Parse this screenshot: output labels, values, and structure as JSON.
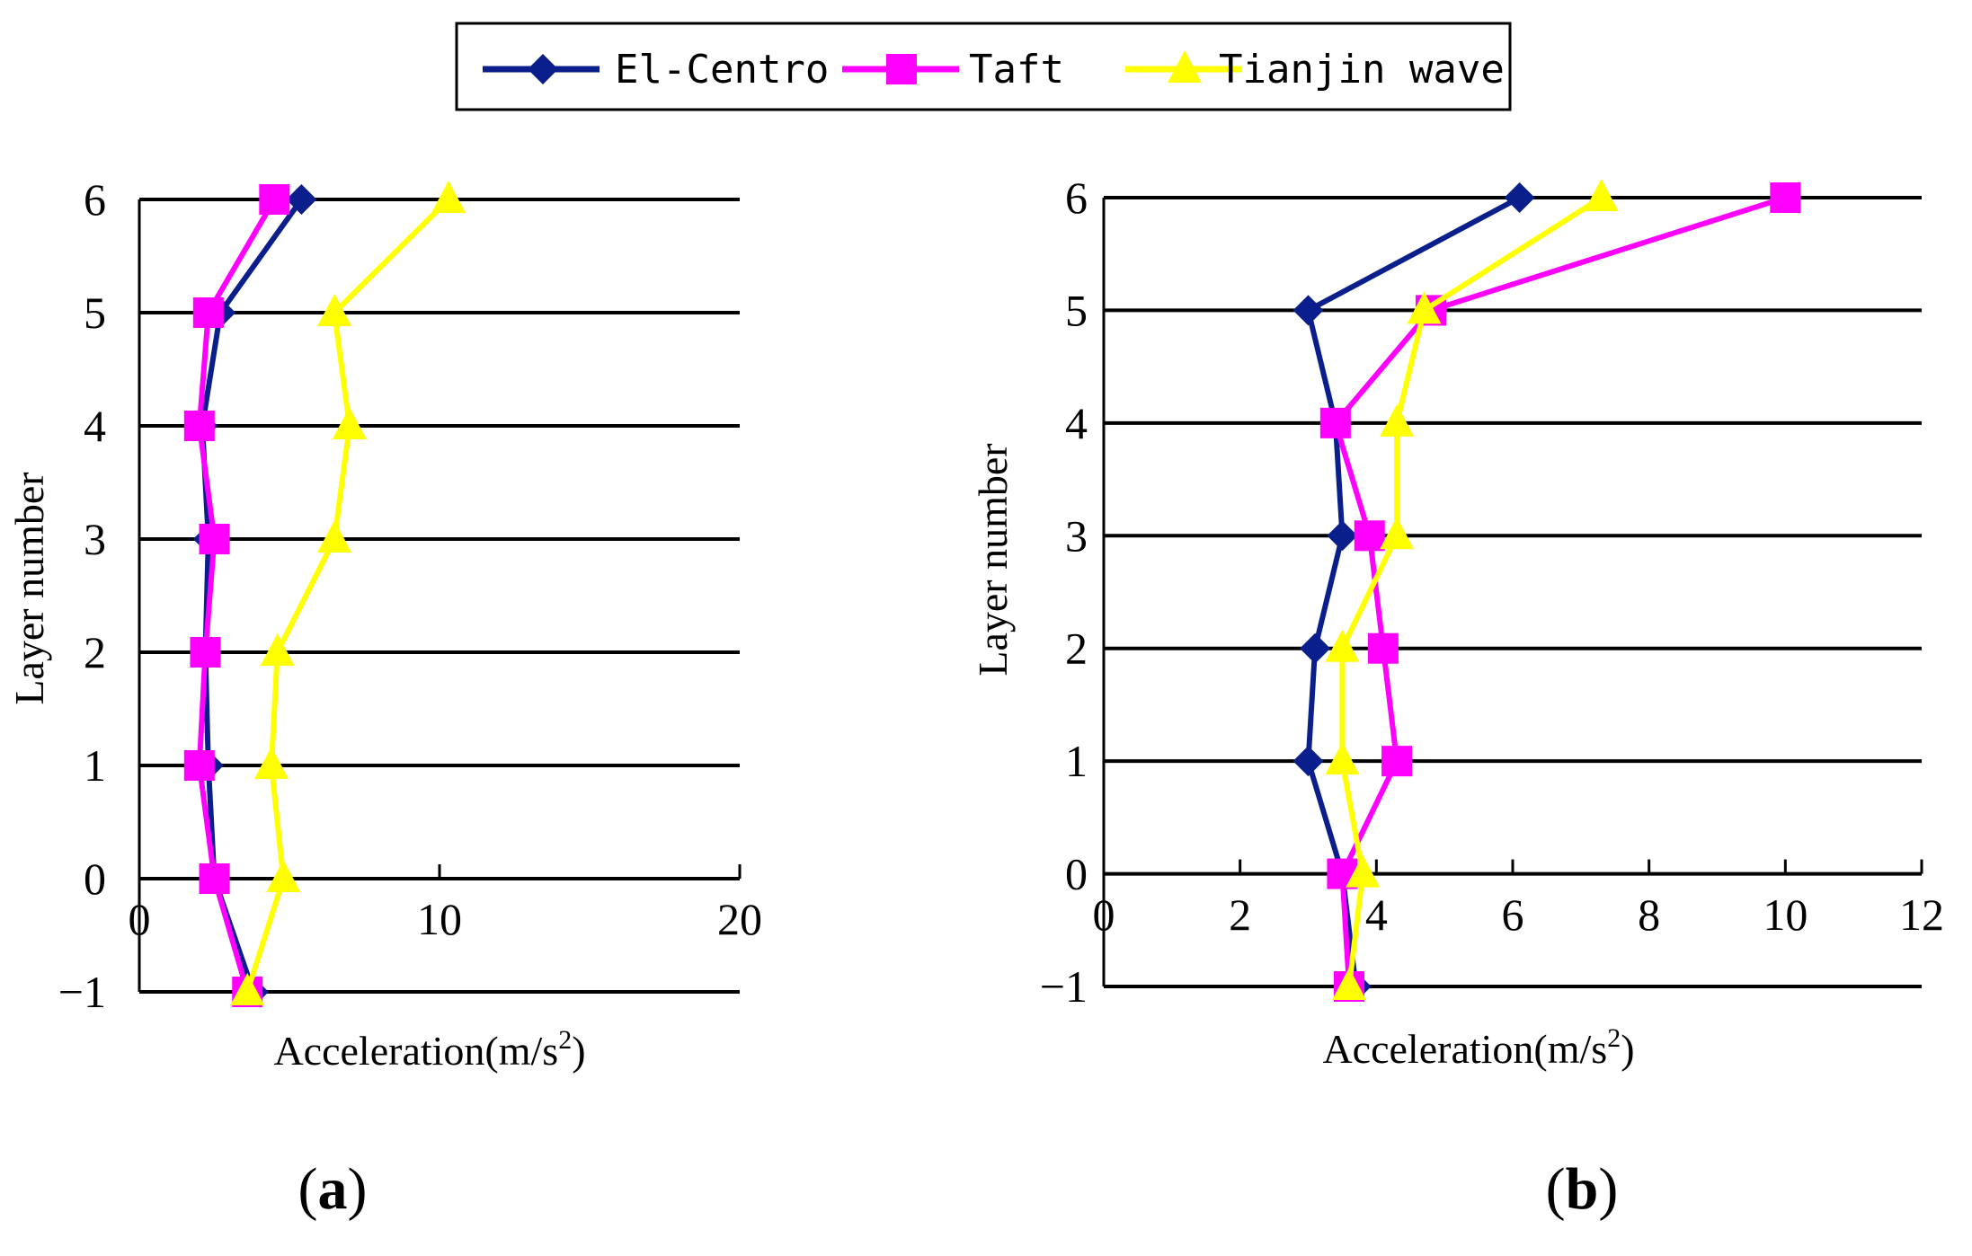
{
  "legend": {
    "entries": [
      {
        "name": "El-Centro",
        "color": "#0b1f8c",
        "marker": "diamond"
      },
      {
        "name": "Taft",
        "color": "#ff00ff",
        "marker": "square"
      },
      {
        "name": "Tianjin wave",
        "color": "#ffff00",
        "marker": "triangle"
      }
    ]
  },
  "chart_data": [
    {
      "type": "line",
      "panel_label": "a",
      "xlabel": "Acceleration(m/s",
      "xlabel_sup": "2",
      "xlabel_end": ")",
      "ylabel": "Layer number",
      "xlim": [
        0,
        20
      ],
      "ylim": [
        -1,
        6
      ],
      "x_ticks": [
        "0",
        "10",
        "20"
      ],
      "y_ticks": [
        "−1",
        "0",
        "1",
        "2",
        "3",
        "4",
        "5",
        "6"
      ],
      "grid": "horizontal",
      "y": [
        -1,
        0,
        1,
        2,
        3,
        4,
        5,
        6
      ],
      "series": [
        {
          "name": "El-Centro",
          "values": [
            3.8,
            2.5,
            2.3,
            2.2,
            2.3,
            2.1,
            2.7,
            5.4
          ]
        },
        {
          "name": "Taft",
          "values": [
            3.6,
            2.5,
            2.0,
            2.2,
            2.5,
            2.0,
            2.3,
            4.5
          ]
        },
        {
          "name": "Tianjin wave",
          "values": [
            3.6,
            4.8,
            4.4,
            4.6,
            6.5,
            7.0,
            6.5,
            10.3
          ]
        }
      ]
    },
    {
      "type": "line",
      "panel_label": "b",
      "xlabel": "Acceleration(m/s",
      "xlabel_sup": "2",
      "xlabel_end": ")",
      "ylabel": "Layer number",
      "xlim": [
        0,
        12
      ],
      "ylim": [
        -1,
        6
      ],
      "x_ticks": [
        "0",
        "2",
        "4",
        "6",
        "8",
        "10",
        "12"
      ],
      "y_ticks": [
        "−1",
        "0",
        "1",
        "2",
        "3",
        "4",
        "5",
        "6"
      ],
      "grid": "horizontal",
      "y": [
        -1,
        0,
        1,
        2,
        3,
        4,
        5,
        6
      ],
      "series": [
        {
          "name": "El-Centro",
          "values": [
            3.7,
            3.5,
            3.0,
            3.1,
            3.5,
            3.4,
            3.0,
            6.1
          ]
        },
        {
          "name": "Taft",
          "values": [
            3.6,
            3.5,
            4.3,
            4.1,
            3.9,
            3.4,
            4.8,
            10.0
          ]
        },
        {
          "name": "Tianjin wave",
          "values": [
            3.6,
            3.8,
            3.5,
            3.5,
            4.3,
            4.3,
            4.7,
            7.3
          ]
        }
      ]
    }
  ]
}
